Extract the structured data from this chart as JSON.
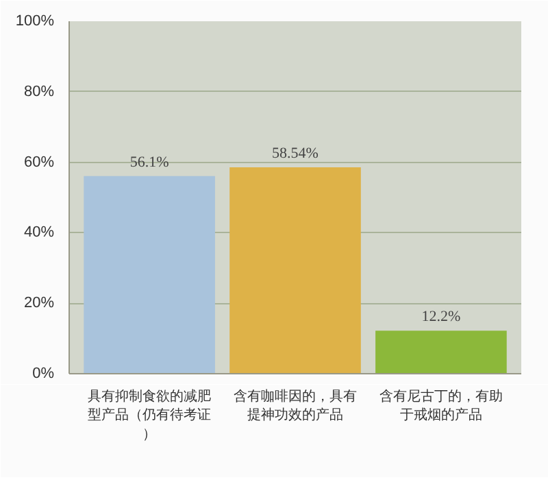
{
  "chart_data": {
    "type": "bar",
    "categories": [
      "具有抑制食欲的减肥型产品（仍有待考证）",
      "含有咖啡因的，具有提神功效的产品",
      "含有尼古丁的，有助于戒烟的产品"
    ],
    "values": [
      56.1,
      58.54,
      12.2
    ],
    "colors": [
      "#a9c3dc",
      "#deb248",
      "#8cb83a"
    ],
    "value_labels": [
      "56.1%",
      "58.54%",
      "12.2%"
    ],
    "ylim": [
      0,
      100
    ],
    "yticks": [
      {
        "value": 0,
        "label": "0%"
      },
      {
        "value": 20,
        "label": "20%"
      },
      {
        "value": 40,
        "label": "40%"
      },
      {
        "value": 60,
        "label": "60%"
      },
      {
        "value": 80,
        "label": "80%"
      },
      {
        "value": 100,
        "label": "100%"
      }
    ],
    "grid": "y"
  }
}
